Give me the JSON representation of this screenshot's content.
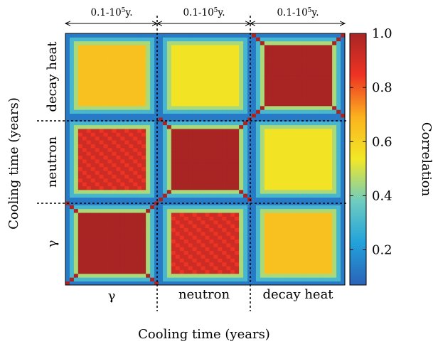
{
  "chart_data": {
    "type": "heatmap",
    "xlabel": "Cooling time (years)",
    "ylabel": "Cooling time (years)",
    "colorbar": {
      "label": "Correlation",
      "ticks": [
        "0.2",
        "0.4",
        "0.6",
        "0.8",
        "1.0"
      ],
      "range": [
        0.07,
        1.0
      ]
    },
    "blocks": [
      "γ",
      "neutron",
      "decay heat"
    ],
    "x_block_labels": [
      "γ",
      "neutron",
      "decay heat"
    ],
    "y_block_labels": [
      "γ",
      "neutron",
      "decay heat"
    ],
    "block_range_prefix": "0.1-10",
    "block_range_exp": "5",
    "block_range_suffix": "y.",
    "cells_per_block": 22,
    "block_correlation_matrix": [
      [
        1.0,
        0.92,
        0.65
      ],
      [
        0.92,
        1.0,
        0.55
      ],
      [
        0.65,
        0.55,
        1.0
      ]
    ],
    "boundary_min_correlation": 0.08,
    "colors": [
      "#2b62b8",
      "#21a2db",
      "#6fccc0",
      "#f2e826",
      "#fbb31e",
      "#ee3324",
      "#a82524"
    ]
  }
}
